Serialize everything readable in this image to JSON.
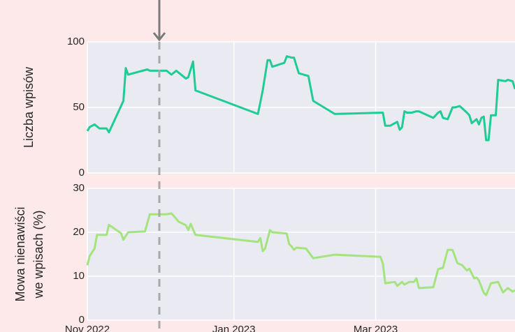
{
  "chart_data": [
    {
      "type": "line",
      "ylabel": [
        "Liczba wpisów"
      ],
      "ylim": [
        0,
        100
      ],
      "yticks": [
        0,
        50,
        100
      ],
      "xlim": [
        "2022-11-01",
        "2023-04-28"
      ],
      "xticks": [
        "2022-11-01",
        "2023-01-01",
        "2023-03-01"
      ],
      "grid": true,
      "series": [
        {
          "color": "#1fcc95",
          "x": [
            "2022-11-01",
            "2022-11-02",
            "2022-11-04",
            "2022-11-06",
            "2022-11-09",
            "2022-11-10",
            "2022-11-16",
            "2022-11-17",
            "2022-11-18",
            "2022-11-26",
            "2022-11-27",
            "2022-12-04",
            "2022-12-06",
            "2022-12-08",
            "2022-12-12",
            "2022-12-13",
            "2022-12-15",
            "2022-12-16",
            "2023-01-11",
            "2023-01-12",
            "2023-01-13",
            "2023-01-15",
            "2023-01-16",
            "2023-01-17",
            "2023-01-22",
            "2023-01-23",
            "2023-01-25",
            "2023-01-26",
            "2023-01-28",
            "2023-02-01",
            "2023-02-03",
            "2023-02-12",
            "2023-03-04",
            "2023-03-05",
            "2023-03-07",
            "2023-03-10",
            "2023-03-11",
            "2023-03-12",
            "2023-03-13",
            "2023-03-14",
            "2023-03-16",
            "2023-03-18",
            "2023-03-19",
            "2023-03-25",
            "2023-03-27",
            "2023-03-28",
            "2023-03-29",
            "2023-03-31",
            "2023-04-02",
            "2023-04-03",
            "2023-04-05",
            "2023-04-08",
            "2023-04-09",
            "2023-04-10",
            "2023-04-12",
            "2023-04-13",
            "2023-04-14",
            "2023-04-15",
            "2023-04-16",
            "2023-04-17",
            "2023-04-18",
            "2023-04-19",
            "2023-04-20",
            "2023-04-21",
            "2023-04-24",
            "2023-04-25",
            "2023-04-27",
            "2023-04-28"
          ],
          "values": [
            32,
            35,
            37,
            34,
            34,
            31,
            55,
            80,
            75,
            79,
            78,
            78,
            75,
            78,
            72,
            73,
            85,
            63,
            45,
            54,
            63,
            86,
            86,
            81,
            84,
            89,
            88,
            88,
            76,
            74,
            55,
            45,
            46,
            36,
            36,
            39,
            33,
            35,
            47,
            46,
            46,
            47,
            47,
            42,
            46,
            47,
            42,
            41,
            50,
            50,
            51,
            46,
            44,
            38,
            41,
            37,
            42,
            43,
            25,
            25,
            44,
            44,
            44,
            71,
            70,
            71,
            70,
            64
          ]
        }
      ]
    },
    {
      "type": "line",
      "ylabel": [
        "Mowa nienawiści",
        "we wpisach (%)"
      ],
      "ylim": [
        0,
        30
      ],
      "yticks": [
        0,
        10,
        20,
        30
      ],
      "xlim": [
        "2022-11-01",
        "2023-04-28"
      ],
      "xticks": [
        {
          "value": "2022-11-01",
          "label": "Nov 2022"
        },
        {
          "value": "2023-01-01",
          "label": "Jan 2023"
        },
        {
          "value": "2023-03-01",
          "label": "Mar 2023"
        }
      ],
      "grid": true,
      "series": [
        {
          "color": "#a3e47c",
          "x": [
            "2022-11-01",
            "2022-11-02",
            "2022-11-04",
            "2022-11-05",
            "2022-11-09",
            "2022-11-10",
            "2022-11-15",
            "2022-11-16",
            "2022-11-18",
            "2022-11-25",
            "2022-11-27",
            "2022-12-04",
            "2022-12-06",
            "2022-12-07",
            "2022-12-09",
            "2022-12-12",
            "2022-12-13",
            "2022-12-14",
            "2022-12-16",
            "2023-01-11",
            "2023-01-12",
            "2023-01-13",
            "2023-01-14",
            "2023-01-16",
            "2023-01-17",
            "2023-01-23",
            "2023-01-24",
            "2023-01-25",
            "2023-01-26",
            "2023-01-27",
            "2023-01-31",
            "2023-02-03",
            "2023-02-12",
            "2023-03-03",
            "2023-03-04",
            "2023-03-05",
            "2023-03-09",
            "2023-03-10",
            "2023-03-12",
            "2023-03-13",
            "2023-03-15",
            "2023-03-17",
            "2023-03-18",
            "2023-03-19",
            "2023-03-25",
            "2023-03-27",
            "2023-03-29",
            "2023-03-31",
            "2023-04-02",
            "2023-04-04",
            "2023-04-06",
            "2023-04-08",
            "2023-04-09",
            "2023-04-11",
            "2023-04-12",
            "2023-04-13",
            "2023-04-15",
            "2023-04-16",
            "2023-04-18",
            "2023-04-21",
            "2023-04-23",
            "2023-04-25",
            "2023-04-27",
            "2023-04-28"
          ],
          "values": [
            12.5,
            14.6,
            16.3,
            19.4,
            19.4,
            21.7,
            19.8,
            18.3,
            20,
            20.2,
            24.1,
            24.1,
            24.3,
            23.7,
            22.4,
            21.6,
            20.5,
            21.9,
            19.4,
            17.8,
            18.7,
            15.7,
            16.3,
            20.5,
            20,
            19.7,
            17.3,
            16.8,
            16,
            16.5,
            16.3,
            14.1,
            14.9,
            14.4,
            12.9,
            8.4,
            8.7,
            7.8,
            8.7,
            8.1,
            8.7,
            8.7,
            9.5,
            7.3,
            7.5,
            11.6,
            11.9,
            16,
            16,
            13,
            12.5,
            11.3,
            11.7,
            9.5,
            9.7,
            9,
            6.2,
            5.7,
            8.4,
            8.7,
            6.3,
            7.3,
            6.5,
            6.8
          ]
        }
      ]
    }
  ]
}
